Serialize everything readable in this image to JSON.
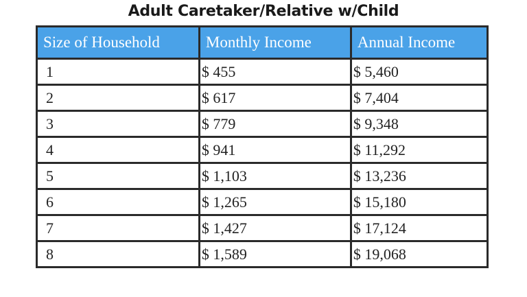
{
  "title": "Adult Caretaker/Relative w/Child",
  "columns": [
    "Size of Household",
    "Monthly Income",
    "Annual Income"
  ],
  "rows": [
    {
      "size": "1",
      "monthly": "$ 455",
      "annual": "$ 5,460"
    },
    {
      "size": "2",
      "monthly": "$ 617",
      "annual": "$ 7,404"
    },
    {
      "size": "3",
      "monthly": "$ 779",
      "annual": "$ 9,348"
    },
    {
      "size": "4",
      "monthly": "$ 941",
      "annual": "$ 11,292"
    },
    {
      "size": "5",
      "monthly": "$ 1,103",
      "annual": "$ 13,236"
    },
    {
      "size": "6",
      "monthly": "$ 1,265",
      "annual": "$ 15,180"
    },
    {
      "size": "7",
      "monthly": "$ 1,427",
      "annual": "$ 17,124"
    },
    {
      "size": "8",
      "monthly": "$ 1,589",
      "annual": "$ 19,068"
    }
  ],
  "colors": {
    "header_background": "#4aa2e8",
    "header_text": "#ffffff",
    "border": "#2a2a2a"
  }
}
